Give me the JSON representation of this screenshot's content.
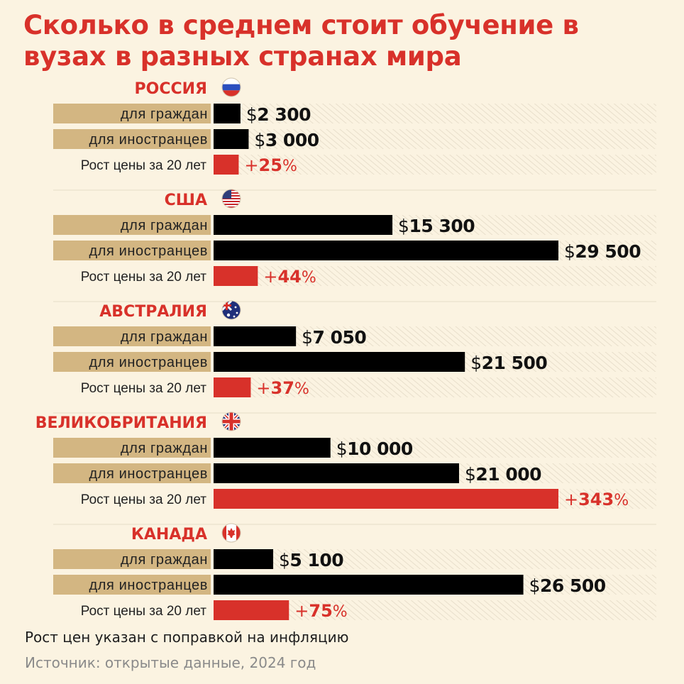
{
  "title": "Сколько в среднем стоит обучение в вузах в разных странах мира",
  "footnote": "Рост цен указан с поправкой на инфляцию",
  "source": "Источник: открытые данные, 2024 год",
  "colors": {
    "accent": "#d8312a",
    "bar": "#000000",
    "label_bg": "#d3b682",
    "background": "#fbf3e1"
  },
  "chart_data": {
    "type": "bar",
    "orientation": "horizontal",
    "row_labels": {
      "citizens": "для граждан",
      "foreigners": "для иностранцев",
      "growth": "Рост цены за 20 лет"
    },
    "currency_prefix": "$",
    "percent_suffix": "%",
    "growth_prefix": "+",
    "countries": [
      {
        "name": "РОССИЯ",
        "flag": "russia-flag-icon",
        "citizens": 2300,
        "citizens_label": "2 300",
        "foreigners": 3000,
        "foreigners_label": "3 000",
        "growth": 25
      },
      {
        "name": "США",
        "flag": "usa-flag-icon",
        "citizens": 15300,
        "citizens_label": "15 300",
        "foreigners": 29500,
        "foreigners_label": "29 500",
        "growth": 44
      },
      {
        "name": "АВСТРАЛИЯ",
        "flag": "australia-flag-icon",
        "citizens": 7050,
        "citizens_label": "7 050",
        "foreigners": 21500,
        "foreigners_label": "21 500",
        "growth": 37
      },
      {
        "name": "ВЕЛИКОБРИТАНИЯ",
        "flag": "uk-flag-icon",
        "citizens": 10000,
        "citizens_label": "10 000",
        "foreigners": 21000,
        "foreigners_label": "21 000",
        "growth": 343
      },
      {
        "name": "КАНАДА",
        "flag": "canada-flag-icon",
        "citizens": 5100,
        "citizens_label": "5 100",
        "foreigners": 26500,
        "foreigners_label": "26 500",
        "growth": 75
      }
    ]
  }
}
